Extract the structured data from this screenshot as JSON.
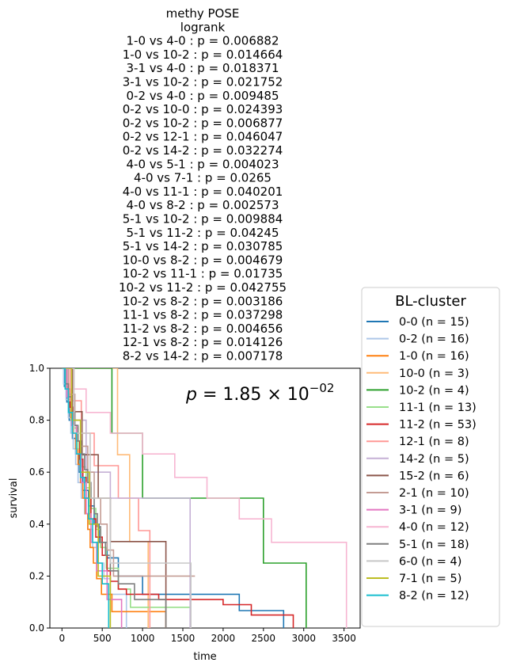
{
  "chart_data": {
    "type": "line",
    "subtype": "kaplan-meier step",
    "title_lines": [
      "methy POSE",
      "logrank",
      "1-0 vs 4-0 :  p = 0.006882",
      "1-0 vs 10-2 :  p = 0.014664",
      "3-1 vs 4-0 :  p = 0.018371",
      "3-1 vs 10-2 :  p = 0.021752",
      "0-2 vs 4-0 :  p = 0.009485",
      "0-2 vs 10-0 :  p = 0.024393",
      "0-2 vs 10-2 :  p = 0.006877",
      "0-2 vs 12-1 :  p = 0.046047",
      "0-2 vs 14-2 :  p = 0.032274",
      "4-0 vs 5-1 :  p = 0.004023",
      "4-0 vs 7-1 :  p = 0.0265",
      "4-0 vs 11-1 :  p = 0.040201",
      "4-0 vs 8-2 :  p = 0.002573",
      "5-1 vs 10-2 :  p = 0.009884",
      "5-1 vs 11-2 :  p = 0.04245",
      "5-1 vs 14-2 :  p = 0.030785",
      "10-0 vs 8-2 :  p = 0.004679",
      "10-2 vs 11-1 :  p = 0.01735",
      "10-2 vs 11-2 :  p = 0.042755",
      "10-2 vs 8-2 :  p = 0.003186",
      "11-1 vs 8-2 :  p = 0.037298",
      "11-2 vs 8-2 :  p = 0.004656",
      "12-1 vs 8-2 :  p = 0.014126",
      "8-2 vs 14-2 :  p = 0.007178"
    ],
    "annotation": {
      "base": "1.85",
      "exponent": "−02"
    },
    "xlabel": "time",
    "ylabel": "survival",
    "xlim": [
      -150,
      3700
    ],
    "ylim": [
      0,
      1
    ],
    "xticks": [
      0,
      500,
      1000,
      1500,
      2000,
      2500,
      3000,
      3500
    ],
    "yticks": [
      0.0,
      0.2,
      0.4,
      0.6,
      0.8,
      1.0
    ],
    "legend": {
      "title": "BL-cluster",
      "placement": "right"
    },
    "series": [
      {
        "name": "0-0 (n = 15)",
        "color": "#1f77b4",
        "x": [
          0,
          30,
          60,
          90,
          130,
          170,
          210,
          260,
          330,
          400,
          460,
          560,
          700,
          1000,
          1300,
          2200,
          2750
        ],
        "y": [
          1,
          0.93,
          0.87,
          0.8,
          0.73,
          0.67,
          0.6,
          0.53,
          0.47,
          0.4,
          0.33,
          0.27,
          0.2,
          0.13,
          0.13,
          0.067,
          0
        ]
      },
      {
        "name": "0-2 (n = 16)",
        "color": "#aec7e8",
        "x": [
          0,
          20,
          50,
          80,
          110,
          140,
          170,
          200,
          240,
          280,
          320,
          380,
          450,
          520,
          600,
          800
        ],
        "y": [
          1,
          0.94,
          0.88,
          0.81,
          0.75,
          0.69,
          0.63,
          0.56,
          0.5,
          0.44,
          0.38,
          0.31,
          0.25,
          0.19,
          0.13,
          0
        ]
      },
      {
        "name": "1-0 (n = 16)",
        "color": "#ff7f0e",
        "x": [
          0,
          40,
          80,
          110,
          140,
          170,
          200,
          230,
          260,
          290,
          320,
          350,
          390,
          430,
          490,
          620,
          1290
        ],
        "y": [
          1,
          0.94,
          0.88,
          0.81,
          0.75,
          0.69,
          0.63,
          0.56,
          0.5,
          0.44,
          0.38,
          0.31,
          0.25,
          0.19,
          0.13,
          0.063,
          0
        ]
      },
      {
        "name": "10-0 (n = 3)",
        "color": "#ffbb78",
        "x": [
          0,
          690,
          840,
          1070
        ],
        "y": [
          1,
          0.667,
          0.333,
          0
        ]
      },
      {
        "name": "10-2 (n = 4)",
        "color": "#2ca02c",
        "x": [
          0,
          620,
          1000,
          2500,
          3030
        ],
        "y": [
          1,
          0.75,
          0.5,
          0.25,
          0
        ]
      },
      {
        "name": "11-1 (n = 13)",
        "color": "#98df8a",
        "x": [
          0,
          50,
          100,
          150,
          200,
          250,
          300,
          360,
          420,
          480,
          550,
          700,
          850,
          1600
        ],
        "y": [
          1,
          0.92,
          0.85,
          0.77,
          0.69,
          0.62,
          0.54,
          0.46,
          0.38,
          0.31,
          0.23,
          0.15,
          0.08,
          0
        ]
      },
      {
        "name": "11-2 (n = 53)",
        "color": "#d62728",
        "x": [
          0,
          60,
          100,
          140,
          180,
          220,
          260,
          300,
          360,
          420,
          500,
          560,
          600,
          700,
          800,
          1200,
          2000,
          2350,
          2870
        ],
        "y": [
          1,
          0.92,
          0.85,
          0.78,
          0.72,
          0.65,
          0.58,
          0.5,
          0.42,
          0.35,
          0.28,
          0.22,
          0.18,
          0.15,
          0.13,
          0.11,
          0.09,
          0.05,
          0
        ]
      },
      {
        "name": "12-1 (n = 8)",
        "color": "#ff9896",
        "x": [
          0,
          100,
          240,
          400,
          700,
          950,
          1090
        ],
        "y": [
          1,
          0.875,
          0.75,
          0.625,
          0.5,
          0.375,
          0
        ]
      },
      {
        "name": "14-2 (n = 5)",
        "color": "#c5b0d5",
        "x": [
          0,
          120,
          300,
          600,
          1590
        ],
        "y": [
          1,
          0.8,
          0.6,
          0.5,
          0
        ]
      },
      {
        "name": "15-2 (n = 6)",
        "color": "#8c564b",
        "x": [
          0,
          130,
          250,
          450,
          600,
          1290
        ],
        "y": [
          1,
          0.833,
          0.667,
          0.5,
          0.333,
          0
        ]
      },
      {
        "name": "2-1 (n = 10)",
        "color": "#c49c94",
        "x": [
          0,
          80,
          160,
          240,
          320,
          400,
          480,
          560,
          640,
          1650
        ],
        "y": [
          1,
          0.9,
          0.8,
          0.7,
          0.6,
          0.5,
          0.4,
          0.3,
          0.2,
          0.2
        ]
      },
      {
        "name": "3-1 (n = 9)",
        "color": "#e377c2",
        "x": [
          0,
          60,
          120,
          180,
          240,
          300,
          360,
          430,
          560,
          740
        ],
        "y": [
          1,
          0.89,
          0.78,
          0.67,
          0.56,
          0.44,
          0.33,
          0.22,
          0.11,
          0
        ]
      },
      {
        "name": "4-0 (n = 12)",
        "color": "#f7b6d2",
        "x": [
          0,
          150,
          300,
          600,
          1000,
          1400,
          1800,
          2200,
          2600,
          3530
        ],
        "y": [
          1,
          0.92,
          0.83,
          0.75,
          0.67,
          0.58,
          0.5,
          0.42,
          0.33,
          0
        ]
      },
      {
        "name": "5-1 (n = 18)",
        "color": "#7f7f7f",
        "x": [
          0,
          40,
          80,
          120,
          160,
          200,
          240,
          280,
          320,
          360,
          400,
          440,
          480,
          540,
          600,
          700,
          900,
          1290
        ],
        "y": [
          1,
          0.94,
          0.89,
          0.83,
          0.78,
          0.72,
          0.67,
          0.61,
          0.56,
          0.5,
          0.44,
          0.39,
          0.33,
          0.28,
          0.22,
          0.17,
          0.11,
          0
        ]
      },
      {
        "name": "6-0 (n = 4)",
        "color": "#c7c7c7",
        "x": [
          0,
          150,
          350,
          600,
          1600
        ],
        "y": [
          1,
          0.75,
          0.5,
          0.25,
          0
        ]
      },
      {
        "name": "7-1 (n = 5)",
        "color": "#bcbd22",
        "x": [
          0,
          120,
          230,
          340,
          450,
          600
        ],
        "y": [
          1,
          0.8,
          0.6,
          0.4,
          0.2,
          0
        ]
      },
      {
        "name": "8-2 (n = 12)",
        "color": "#17becf",
        "x": [
          0,
          40,
          80,
          130,
          180,
          230,
          280,
          330,
          380,
          440,
          500,
          580
        ],
        "y": [
          1,
          0.92,
          0.83,
          0.75,
          0.67,
          0.58,
          0.5,
          0.42,
          0.33,
          0.25,
          0.17,
          0
        ]
      }
    ]
  }
}
